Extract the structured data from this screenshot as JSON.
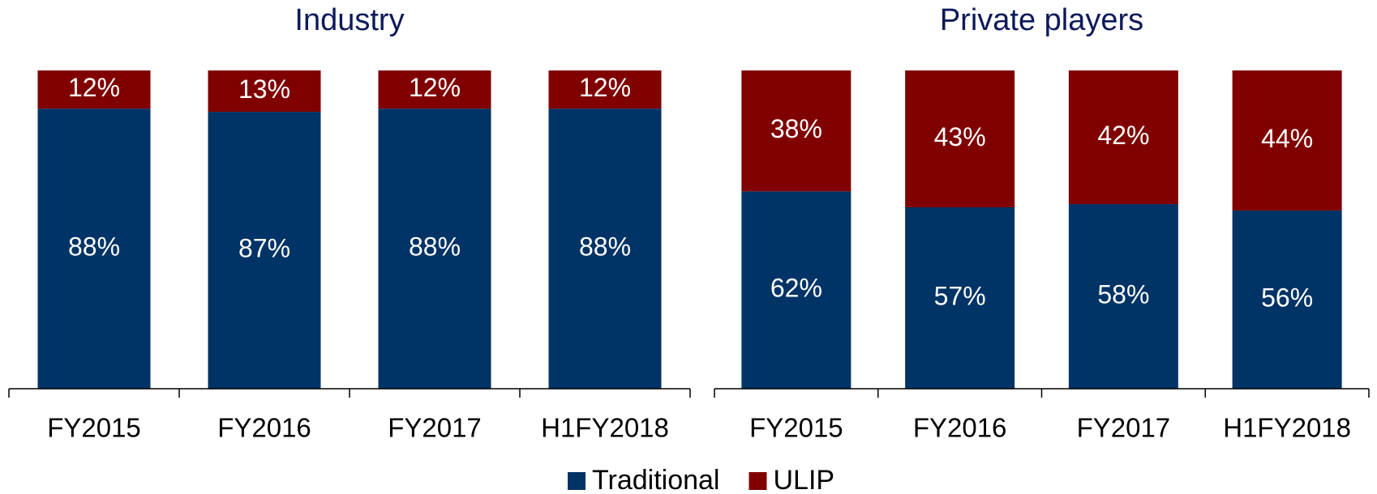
{
  "chart_data": [
    {
      "type": "stacked_bar",
      "title": "Industry",
      "categories": [
        "FY2015",
        "FY2016",
        "FY2017",
        "H1FY2018"
      ],
      "series": [
        {
          "name": "Traditional",
          "color": "#003366",
          "values": [
            88,
            87,
            88,
            88
          ],
          "value_labels": [
            "88%",
            "87%",
            "88%",
            "88%"
          ]
        },
        {
          "name": "ULIP",
          "color": "#800000",
          "values": [
            12,
            13,
            12,
            12
          ],
          "value_labels": [
            "12%",
            "13%",
            "12%",
            "12%"
          ]
        }
      ],
      "ylim": [
        0,
        100
      ],
      "legend": "bottom"
    },
    {
      "type": "stacked_bar",
      "title": "Private players",
      "categories": [
        "FY2015",
        "FY2016",
        "FY2017",
        "H1FY2018"
      ],
      "series": [
        {
          "name": "Traditional",
          "color": "#003366",
          "values": [
            62,
            57,
            58,
            56
          ],
          "value_labels": [
            "62%",
            "57%",
            "58%",
            "56%"
          ]
        },
        {
          "name": "ULIP",
          "color": "#800000",
          "values": [
            38,
            43,
            42,
            44
          ],
          "value_labels": [
            "38%",
            "43%",
            "42%",
            "44%"
          ]
        }
      ],
      "ylim": [
        0,
        100
      ],
      "legend": "bottom"
    }
  ]
}
